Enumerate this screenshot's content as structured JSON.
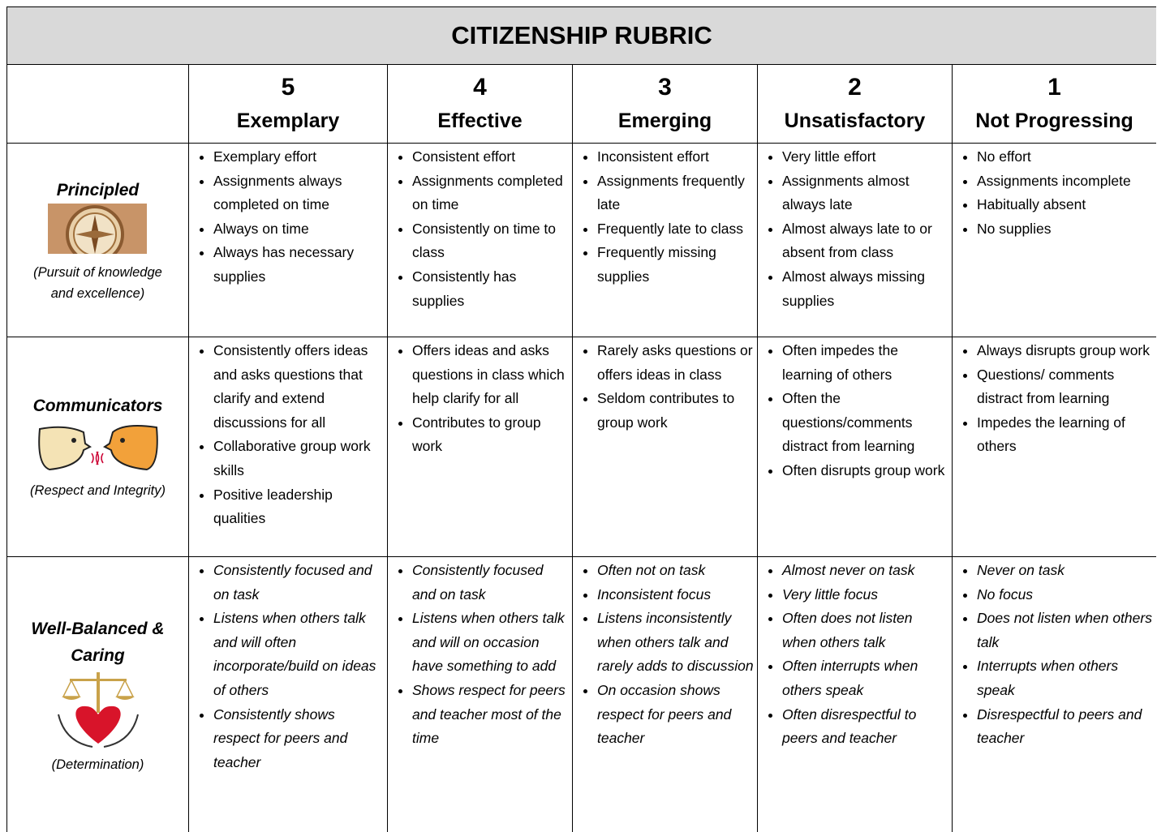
{
  "title": "CITIZENSHIP RUBRIC",
  "columns": [
    {
      "score": "5",
      "label": "Exemplary"
    },
    {
      "score": "4",
      "label": "Effective"
    },
    {
      "score": "3",
      "label": "Emerging"
    },
    {
      "score": "2",
      "label": "Unsatisfactory"
    },
    {
      "score": "1",
      "label": "Not Progressing"
    }
  ],
  "rows": [
    {
      "label": "Principled",
      "subtitle": "(Pursuit of knowledge and excellence)",
      "cells": [
        [
          "Exemplary effort",
          "Assignments always completed on time",
          "Always on time",
          "Always has necessary supplies"
        ],
        [
          "Consistent effort",
          "Assignments completed on time",
          "Consistently on time to class",
          "Consistently has supplies"
        ],
        [
          "Inconsistent effort",
          "Assignments frequently late",
          "Frequently late to class",
          "Frequently missing supplies"
        ],
        [
          "Very little effort",
          "Assignments almost always late",
          "Almost always late to or absent from class",
          "Almost always missing supplies"
        ],
        [
          "No effort",
          "Assignments incomplete",
          "Habitually absent",
          "No supplies"
        ]
      ]
    },
    {
      "label": "Communicators",
      "subtitle": "(Respect and Integrity)",
      "cells": [
        [
          "Consistently offers ideas and asks questions that clarify and extend discussions for all",
          "Collaborative group work skills",
          "Positive leadership qualities"
        ],
        [
          "Offers ideas and asks questions in class which help clarify for all",
          "Contributes to group work"
        ],
        [
          "Rarely asks questions or offers ideas in class",
          "Seldom contributes to group work"
        ],
        [
          "Often impedes the learning of others",
          "Often the questions/comments distract from learning",
          "Often disrupts group work"
        ],
        [
          "Always disrupts group work",
          "Questions/ comments distract from learning",
          "Impedes the learning of others"
        ]
      ]
    },
    {
      "label": "Well-Balanced & Caring",
      "subtitle": "(Determination)",
      "cells": [
        [
          "Consistently focused and on task",
          "Listens when others talk and will often incorporate/build on ideas of others",
          "Consistently shows respect for peers and teacher"
        ],
        [
          "Consistently focused and on task",
          "Listens when others talk and will on occasion have something to add",
          "Shows respect for peers and teacher most of the time"
        ],
        [
          "Often not on task",
          "Inconsistent focus",
          "Listens inconsistently when others talk and rarely adds to discussion",
          "On occasion shows respect for peers and teacher"
        ],
        [
          "Almost never on task",
          "Very little focus",
          "Often does not listen when others talk",
          "Often interrupts when others speak",
          "Often disrespectful to peers and teacher"
        ],
        [
          "Never on task",
          "No focus",
          "Does not listen when others talk",
          "Interrupts when others speak",
          "Disrespectful to peers and teacher"
        ]
      ]
    }
  ]
}
